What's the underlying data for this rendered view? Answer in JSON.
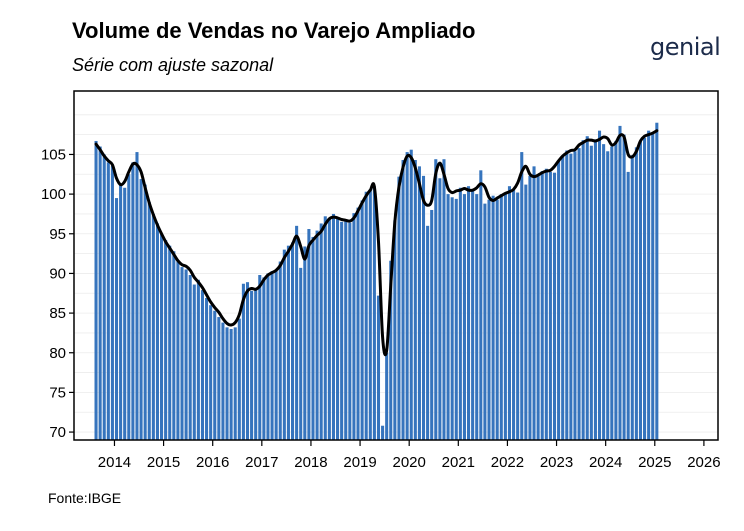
{
  "header": {
    "title": "Volume de Vendas no Varejo Ampliado",
    "subtitle": "Série com ajuste sazonal",
    "logo_text": "genial"
  },
  "footer": {
    "source": "Fonte:IBGE"
  },
  "colors": {
    "bar": "#3674bd",
    "line": "#000000",
    "grid": "#ececec",
    "background": "#ffffff"
  },
  "chart_data": {
    "type": "bar",
    "title": "Volume de Vendas no Varejo Ampliado",
    "subtitle": "Série com ajuste sazonal",
    "xlabel": "",
    "ylabel": "",
    "x_start": "2013-08",
    "ylim": [
      69,
      113
    ],
    "y_ticks": [
      70,
      75,
      80,
      85,
      90,
      95,
      100,
      105
    ],
    "x_ticks": [
      "2014",
      "2015",
      "2016",
      "2017",
      "2018",
      "2019",
      "2020",
      "2021",
      "2022",
      "2023",
      "2024",
      "2025",
      "2026"
    ],
    "grid": true,
    "series": [
      {
        "type": "bar",
        "values": [
          106.7,
          106.0,
          105.0,
          104.0,
          103.6,
          99.5,
          101.3,
          100.8,
          102.5,
          104.0,
          105.3,
          101.9,
          101.2,
          99.0,
          97.5,
          96.3,
          95.0,
          94.2,
          93.5,
          92.8,
          91.5,
          90.8,
          90.5,
          89.8,
          88.6,
          89.2,
          87.9,
          86.9,
          86.0,
          85.3,
          84.5,
          83.8,
          83.2,
          83.0,
          83.2,
          84.3,
          88.7,
          88.9,
          87.8,
          88.0,
          89.8,
          89.5,
          90.0,
          90.3,
          90.5,
          91.5,
          93.0,
          93.5,
          93.9,
          96.0,
          90.7,
          93.4,
          95.6,
          94.6,
          95.4,
          96.3,
          97.2,
          96.9,
          97.5,
          96.9,
          96.5,
          96.8,
          96.4,
          97.6,
          98.3,
          99.2,
          100.3,
          100.6,
          101.0,
          87.2,
          70.8,
          80.0,
          91.6,
          96.7,
          102.2,
          104.3,
          105.3,
          105.6,
          104.3,
          103.5,
          102.3,
          96.0,
          98.0,
          104.4,
          102.0,
          104.4,
          100.0,
          99.6,
          99.4,
          100.8,
          100.0,
          101.0,
          100.5,
          100.0,
          103.0,
          98.8,
          99.3,
          99.8,
          99.3,
          100.0,
          100.2,
          101.0,
          100.5,
          100.2,
          105.3,
          101.2,
          102.3,
          103.5,
          102.3,
          102.9,
          103.2,
          102.8,
          102.7,
          104.2,
          104.7,
          105.5,
          105.1,
          105.4,
          105.8,
          106.8,
          107.3,
          106.1,
          106.9,
          108.0,
          106.3,
          105.4,
          106.0,
          106.7,
          108.6,
          107.5,
          102.8,
          104.9,
          105.9,
          106.7,
          107.1,
          108.0,
          107.6,
          109.0
        ]
      },
      {
        "type": "line",
        "name": "",
        "values": [
          106.3,
          105.6,
          104.8,
          104.2,
          103.7,
          102.0,
          101.2,
          101.6,
          102.8,
          103.8,
          103.7,
          102.8,
          100.8,
          98.9,
          97.4,
          96.1,
          95.0,
          94.0,
          93.2,
          92.4,
          91.6,
          91.1,
          90.9,
          90.4,
          89.5,
          88.9,
          88.2,
          87.3,
          86.4,
          85.7,
          85.1,
          84.3,
          83.7,
          83.5,
          83.8,
          84.8,
          86.7,
          87.8,
          88.1,
          88.0,
          88.4,
          89.2,
          89.8,
          90.1,
          90.4,
          91.0,
          92.0,
          92.8,
          93.7,
          94.7,
          93.4,
          91.8,
          93.5,
          94.2,
          94.8,
          95.3,
          96.2,
          96.9,
          97.1,
          97.0,
          96.8,
          96.7,
          96.6,
          97.0,
          97.9,
          98.9,
          99.8,
          100.5,
          100.9,
          94.0,
          82.0,
          80.3,
          88.5,
          96.5,
          100.9,
          103.4,
          104.8,
          104.6,
          103.3,
          101.3,
          99.2,
          98.6,
          99.2,
          102.6,
          103.9,
          102.5,
          100.7,
          100.2,
          100.4,
          100.5,
          100.7,
          100.5,
          100.5,
          100.8,
          101.3,
          100.9,
          99.6,
          99.2,
          99.5,
          99.8,
          100.1,
          100.3,
          100.6,
          101.4,
          102.8,
          103.5,
          102.5,
          102.2,
          102.4,
          102.7,
          102.9,
          103.0,
          103.5,
          104.2,
          104.8,
          105.2,
          105.5,
          105.6,
          106.2,
          106.5,
          106.8,
          106.8,
          106.7,
          106.9,
          107.2,
          107.0,
          106.2,
          106.5,
          107.4,
          107.2,
          105.0,
          104.7,
          105.4,
          106.7,
          107.3,
          107.5,
          107.7,
          108.0
        ]
      }
    ]
  }
}
